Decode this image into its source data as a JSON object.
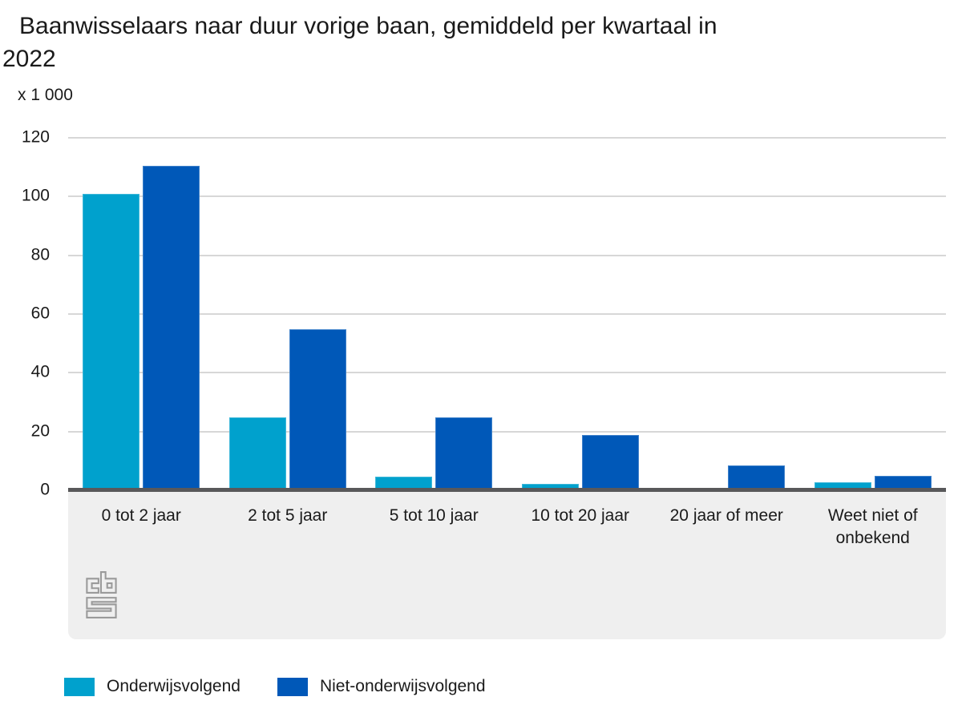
{
  "title": "Baanwisselaars naar duur vorige baan, gemiddeld per kwartaal in 2022",
  "chart_data": {
    "type": "bar",
    "title": "Baanwisselaars naar duur vorige baan, gemiddeld per kwartaal in 2022",
    "unit_label": "x 1 000",
    "categories": [
      "0 tot 2 jaar",
      "2 tot 5 jaar",
      "5 tot 10 jaar",
      "10 tot 20 jaar",
      "20 jaar of meer",
      "Weet niet of onbekend"
    ],
    "series": [
      {
        "name": "Onderwijsvolgend",
        "color": "#00a1cd",
        "values": [
          100.8,
          24.7,
          4.7,
          2.1,
          0.2,
          2.7
        ]
      },
      {
        "name": "Niet-onderwijsvolgend",
        "color": "#0058b8",
        "values": [
          110.5,
          54.9,
          24.7,
          18.8,
          8.4,
          4.9
        ]
      }
    ],
    "xlabel": "",
    "ylabel": "x 1 000",
    "ylim": [
      0,
      120
    ],
    "ytick_step": 20,
    "yticks": [
      0,
      20,
      40,
      60,
      80,
      100,
      120
    ],
    "grid": true,
    "legend_position": "bottom",
    "source_logo": "cbs-logo"
  },
  "colors": {
    "axis_line": "#58585a",
    "gridline": "#d7d7d7",
    "panel_background": "#efefef",
    "text": "#1a1a1a",
    "logo": "#9a9a9a"
  }
}
